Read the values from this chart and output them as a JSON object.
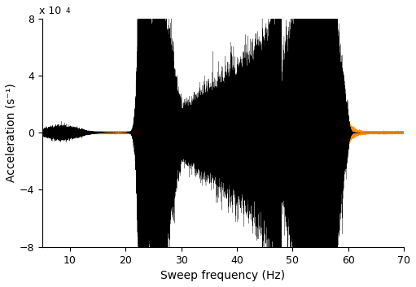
{
  "xlim": [
    5,
    70
  ],
  "ylim": [
    -8,
    8
  ],
  "xlabel": "Sweep frequency (Hz)",
  "ylabel": "Acceleration (s⁻¹)",
  "multiplier_text": "x 10",
  "multiplier_sup": "4",
  "xticks": [
    10,
    20,
    30,
    40,
    50,
    60,
    70
  ],
  "yticks": [
    -8,
    -4,
    0,
    4,
    8
  ],
  "black_color": "#000000",
  "orange_color": "#FF8C00",
  "bg_color": "#ffffff",
  "seed": 42,
  "n_points": 300000
}
